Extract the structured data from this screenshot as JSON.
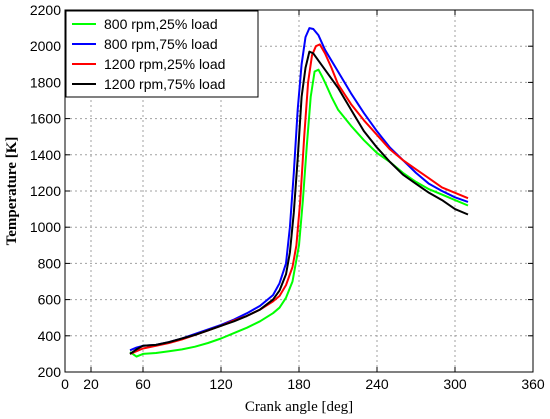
{
  "chart_data": {
    "type": "line",
    "title": "",
    "xlabel": "Crank angle [deg]",
    "ylabel": "Temperature [K]",
    "xlim": [
      0,
      360
    ],
    "ylim": [
      200,
      2200
    ],
    "xticks": [
      0,
      20,
      60,
      120,
      180,
      240,
      300,
      360
    ],
    "yticks": [
      200,
      400,
      600,
      800,
      1000,
      1200,
      1400,
      1600,
      1800,
      2000,
      2200
    ],
    "grid": true,
    "legend_position": "top-left",
    "series": [
      {
        "name": "800 rpm,25% load",
        "color": "#00ff00",
        "x": [
          50,
          55,
          60,
          70,
          80,
          90,
          100,
          110,
          120,
          130,
          140,
          150,
          160,
          165,
          170,
          175,
          180,
          183,
          186,
          189,
          192,
          195,
          198,
          200,
          205,
          210,
          220,
          230,
          240,
          250,
          260,
          270,
          280,
          290,
          300,
          310
        ],
        "y": [
          310,
          285,
          300,
          305,
          315,
          325,
          340,
          360,
          385,
          415,
          445,
          480,
          525,
          555,
          610,
          700,
          900,
          1150,
          1450,
          1720,
          1860,
          1870,
          1830,
          1800,
          1720,
          1650,
          1560,
          1480,
          1410,
          1360,
          1300,
          1250,
          1210,
          1180,
          1150,
          1120
        ]
      },
      {
        "name": "800 rpm,75% load",
        "color": "#0000ff",
        "x": [
          50,
          55,
          60,
          70,
          80,
          90,
          100,
          110,
          120,
          130,
          140,
          150,
          160,
          165,
          170,
          173,
          176,
          179,
          182,
          185,
          188,
          191,
          195,
          200,
          210,
          220,
          230,
          240,
          250,
          260,
          270,
          280,
          290,
          300,
          310
        ],
        "y": [
          320,
          335,
          345,
          350,
          365,
          385,
          410,
          435,
          460,
          490,
          525,
          565,
          625,
          690,
          800,
          1000,
          1300,
          1650,
          1900,
          2050,
          2100,
          2095,
          2060,
          1980,
          1860,
          1740,
          1630,
          1530,
          1440,
          1370,
          1300,
          1240,
          1200,
          1165,
          1140
        ]
      },
      {
        "name": "1200 rpm,25% load",
        "color": "#ff0000",
        "x": [
          50,
          55,
          60,
          70,
          80,
          90,
          100,
          110,
          120,
          130,
          140,
          150,
          160,
          165,
          170,
          175,
          178,
          181,
          184,
          187,
          190,
          193,
          196,
          200,
          205,
          210,
          220,
          230,
          240,
          250,
          260,
          270,
          280,
          290,
          300,
          310
        ],
        "y": [
          300,
          315,
          330,
          345,
          360,
          380,
          405,
          430,
          455,
          485,
          510,
          545,
          590,
          620,
          680,
          780,
          900,
          1150,
          1500,
          1800,
          1950,
          2000,
          2010,
          1960,
          1880,
          1790,
          1680,
          1590,
          1510,
          1430,
          1370,
          1320,
          1270,
          1220,
          1190,
          1160
        ]
      },
      {
        "name": "1200 rpm,75% load",
        "color": "#000000",
        "x": [
          50,
          55,
          60,
          70,
          80,
          90,
          100,
          110,
          120,
          130,
          140,
          150,
          160,
          165,
          170,
          173,
          176,
          179,
          182,
          185,
          188,
          191,
          195,
          200,
          210,
          220,
          230,
          240,
          250,
          260,
          270,
          280,
          290,
          300,
          310
        ],
        "y": [
          300,
          325,
          345,
          350,
          365,
          385,
          405,
          430,
          455,
          480,
          510,
          545,
          600,
          650,
          740,
          860,
          1080,
          1380,
          1720,
          1880,
          1970,
          1960,
          1920,
          1870,
          1770,
          1650,
          1530,
          1440,
          1360,
          1290,
          1240,
          1190,
          1150,
          1100,
          1070
        ]
      }
    ]
  }
}
